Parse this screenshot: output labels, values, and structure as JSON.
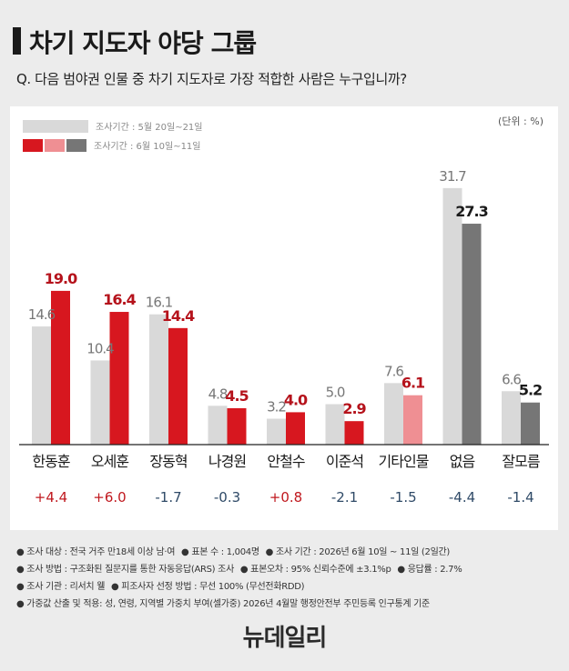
{
  "header": {
    "title": "차기 지도자 야당 그룹",
    "question": "Q. 다음 범야권 인물 중 차기 지도자로 가장 적합한 사람은 누구입니까?"
  },
  "legend": {
    "prev_label": "조사기간 : 5월 20일~21일",
    "curr_label": "조사기간 : 6월 10일~11일",
    "unit": "(단위 : %)"
  },
  "colors": {
    "prev": "#d9d9d9",
    "curr_red": "#d7171f",
    "curr_pink": "#ef8f93",
    "curr_gray": "#767676",
    "plus": "#c0181e",
    "minus": "#2f4a67"
  },
  "chart_data": {
    "type": "bar",
    "categories": [
      "한동훈",
      "오세훈",
      "장동혁",
      "나경원",
      "안철수",
      "이준석",
      "기타인물",
      "없음",
      "잘모름"
    ],
    "series": [
      {
        "name": "조사기간 : 5월 20일~21일",
        "values": [
          14.6,
          10.4,
          16.1,
          4.8,
          3.2,
          5.0,
          7.6,
          31.7,
          6.6
        ]
      },
      {
        "name": "조사기간 : 6월 10일~11일",
        "values": [
          19.0,
          16.4,
          14.4,
          4.5,
          4.0,
          2.9,
          6.1,
          27.3,
          5.2
        ]
      }
    ],
    "value_labels_prev": [
      "14.6",
      "10.4",
      "16.1",
      "4.8",
      "3.2",
      "5.0",
      "7.6",
      "31.7",
      "6.6"
    ],
    "value_labels_curr": [
      "19.0",
      "16.4",
      "14.4",
      "4.5",
      "4.0",
      "2.9",
      "6.1",
      "27.3",
      "5.2"
    ],
    "changes": [
      "+4.4",
      "+6.0",
      "-1.7",
      "-0.3",
      "+0.8",
      "-2.1",
      "-1.5",
      "-4.4",
      "-1.4"
    ],
    "curr_color_group": [
      "red",
      "red",
      "red",
      "red",
      "red",
      "red",
      "pink",
      "gray",
      "gray"
    ],
    "ylim": [
      0,
      35
    ]
  },
  "notes": [
    [
      "● 조사 대상 : 전국 거주 만18세 이상 남·여",
      "● 표본 수 : 1,004명",
      "● 조사 기간 : 2026년 6월 10일 ~ 11일 (2일간)"
    ],
    [
      "● 조사 방법 : 구조화된 질문지를 통한 자동응답(ARS) 조사",
      "● 표본오차 : 95% 신뢰수준에 ±3.1%p",
      "● 응답률 : 2.7%"
    ],
    [
      "● 조사 기관 : 리서치 웰",
      "● 피조사자 선정 방법 : 무선 100% (무선전화RDD)"
    ],
    [
      "● 가중값 산출 및 적용: 성, 연령, 지역별 가중치 부여(셀가중) 2026년 4월말 행정안전부 주민등록 인구통계 기준"
    ]
  ],
  "brand": {
    "logo_text": "뉴데일리"
  }
}
